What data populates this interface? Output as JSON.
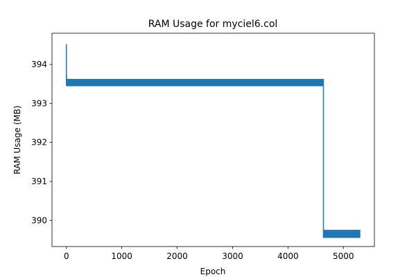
{
  "chart_data": {
    "type": "line",
    "title": "RAM Usage for myciel6.col",
    "xlabel": "Epoch",
    "ylabel": "RAM Usage (MB)",
    "xlim": [
      -260,
      5560
    ],
    "ylim": [
      389.33,
      394.8
    ],
    "xticks": [
      0,
      1000,
      2000,
      3000,
      4000,
      5000
    ],
    "yticks": [
      390,
      391,
      392,
      393,
      394
    ],
    "grid": false,
    "series": [
      {
        "name": "RAM Usage",
        "color": "#1f77b4",
        "segments": [
          {
            "x": [
              0,
              0,
              0,
              10
            ],
            "y": [
              394.52,
              393.45,
              393.75,
              393.45
            ]
          },
          {
            "x": [
              10,
              4640
            ],
            "band": [
              393.45,
              393.62
            ]
          },
          {
            "x": [
              4640,
              4640
            ],
            "y": [
              393.62,
              389.56
            ]
          },
          {
            "x": [
              4640,
              5300
            ],
            "band": [
              389.56,
              389.75
            ]
          }
        ]
      }
    ]
  }
}
